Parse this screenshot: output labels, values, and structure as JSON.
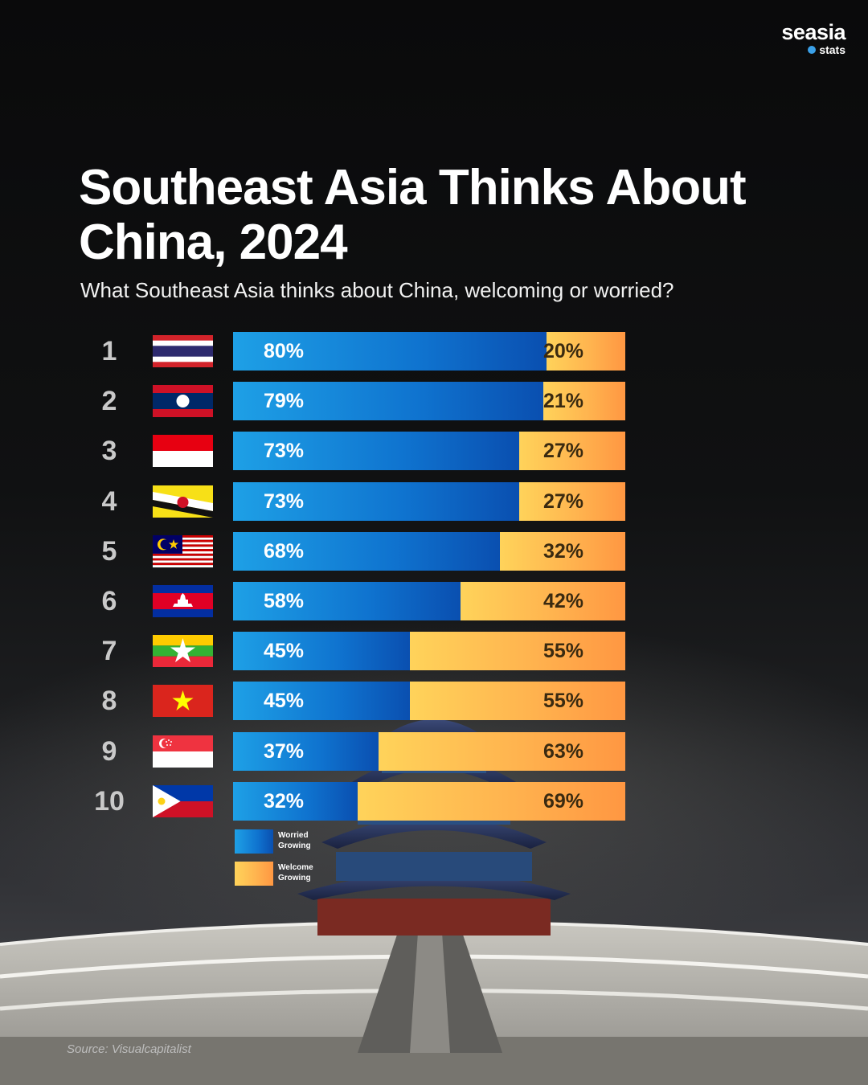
{
  "brand": {
    "name": "seasia",
    "sub": "stats"
  },
  "title": "Southeast Asia Thinks About China, 2024",
  "subtitle": "What Southeast Asia thinks about China, welcoming or worried?",
  "chart_data": {
    "type": "bar",
    "orientation": "horizontal-stacked-100",
    "categories": [
      "1",
      "2",
      "3",
      "4",
      "5",
      "6",
      "7",
      "8",
      "9",
      "10"
    ],
    "flags": [
      "thailand-flag-icon",
      "laos-flag-icon",
      "indonesia-flag-icon",
      "brunei-flag-icon",
      "malaysia-flag-icon",
      "cambodia-flag-icon",
      "myanmar-flag-icon",
      "vietnam-flag-icon",
      "singapore-flag-icon",
      "philippines-flag-icon"
    ],
    "series": [
      {
        "name": "Worried Growing",
        "values": [
          80,
          79,
          73,
          73,
          68,
          58,
          45,
          45,
          37,
          32
        ],
        "color": "#1a8fe0"
      },
      {
        "name": "Welcome Growing",
        "values": [
          20,
          21,
          27,
          27,
          32,
          42,
          55,
          55,
          63,
          69
        ],
        "color": "#ffb44f"
      }
    ],
    "value_suffix": "%",
    "legend_position": "bottom-left"
  },
  "legend": {
    "worried": "Worried Growing",
    "welcome": "Welcome Growing"
  },
  "source": "Source: Visualcapitalist"
}
